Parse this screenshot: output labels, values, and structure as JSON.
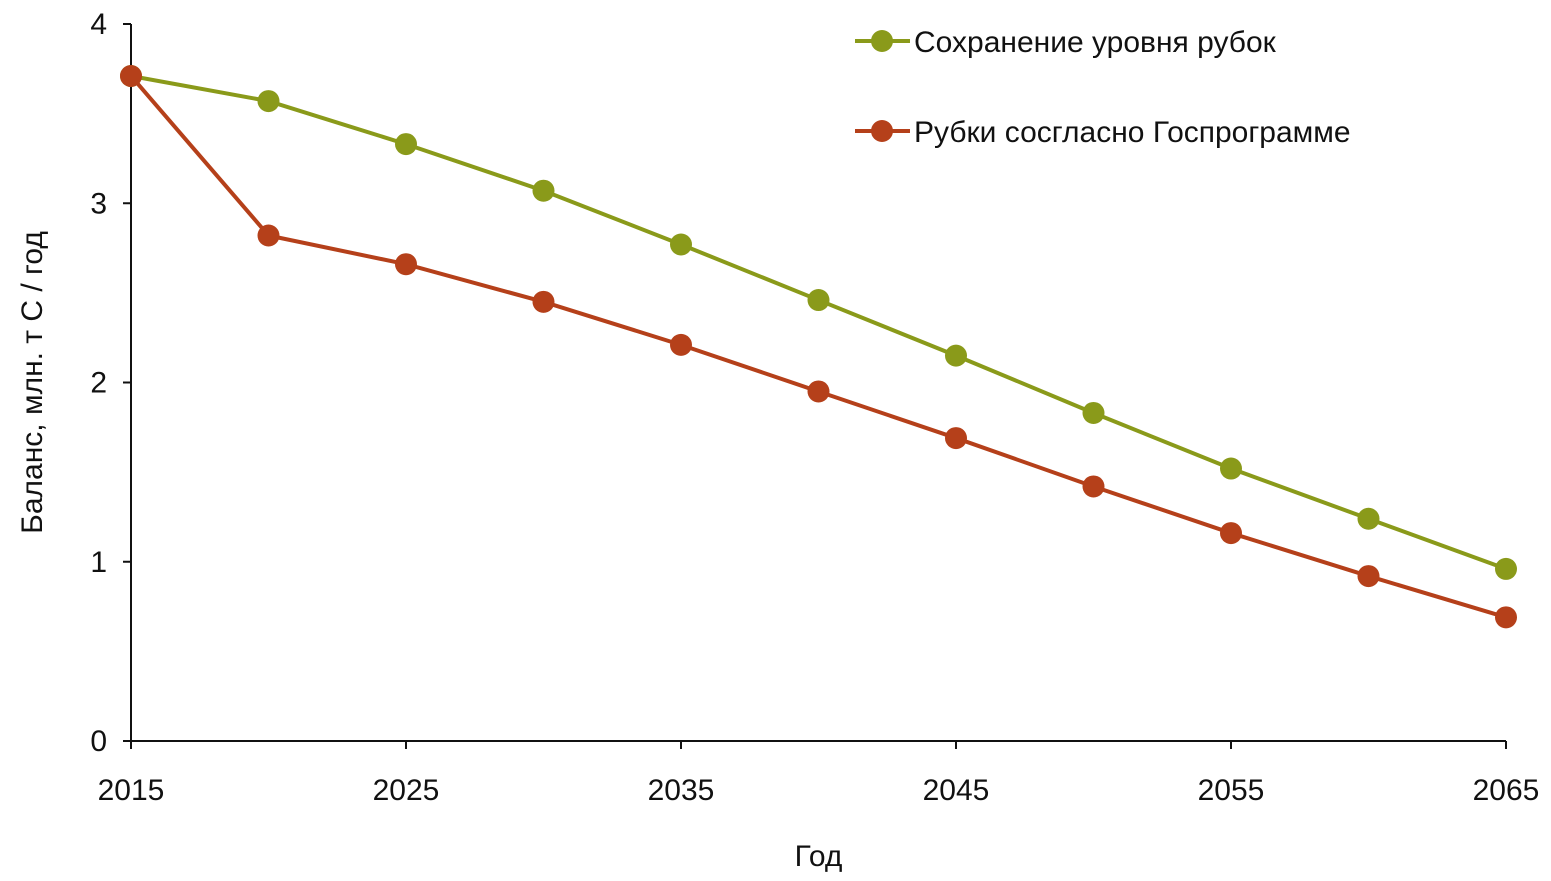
{
  "chart_data": {
    "type": "line",
    "title": "",
    "xlabel": "Год",
    "ylabel": "Баланс, млн. т С / год",
    "x": [
      2015,
      2020,
      2025,
      2030,
      2035,
      2040,
      2045,
      2050,
      2055,
      2060,
      2065
    ],
    "xticks": [
      "2015",
      "2025",
      "2035",
      "2045",
      "2055",
      "2065"
    ],
    "yticks": [
      "0",
      "1",
      "2",
      "3",
      "4"
    ],
    "xlim": [
      2015,
      2065
    ],
    "ylim": [
      0,
      4
    ],
    "grid": false,
    "legend_position": "top-right",
    "series": [
      {
        "name": "Сохранение уровня рубок",
        "color": "#8a9a1a",
        "values": [
          3.71,
          3.57,
          3.33,
          3.07,
          2.77,
          2.46,
          2.15,
          1.83,
          1.52,
          1.24,
          0.96
        ]
      },
      {
        "name": "Рубки сосгласно Госпрограмме",
        "color": "#b5401a",
        "values": [
          3.71,
          2.82,
          2.66,
          2.45,
          2.21,
          1.95,
          1.69,
          1.42,
          1.16,
          0.92,
          0.69
        ]
      }
    ]
  }
}
